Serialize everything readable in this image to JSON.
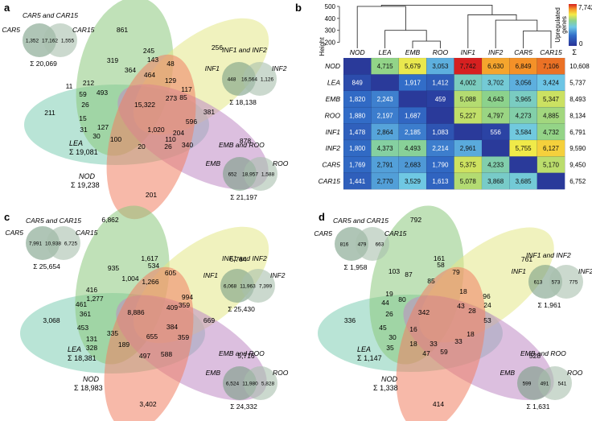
{
  "panel_letters": {
    "a": "a",
    "b": "b",
    "c": "c",
    "d": "d"
  },
  "colors": {
    "LEA": "#7fcdb4",
    "EMB": "#8cc97e",
    "INF": "#e3e888",
    "ROO": "#c08bc4",
    "NOD": "#f07f62",
    "pair_left": "#7a9e86",
    "pair_right": "#a9c0ad",
    "heat_low": "#2a3a9a",
    "heat_high": "#d62020"
  },
  "venns": {
    "a": {
      "regions": [
        "861",
        "256",
        "211",
        "878",
        "201",
        "319",
        "245",
        "48",
        "364",
        "143",
        "464",
        "129",
        "212",
        "493",
        "59",
        "26",
        "117",
        "85",
        "15,322",
        "273",
        "31",
        "127",
        "381",
        "15",
        "1,020",
        "596",
        "30",
        "110",
        "340",
        "100",
        "204",
        "20",
        "26",
        "11"
      ],
      "pairs": [
        {
          "title": "CAR5 and CAR15",
          "left_label": "CAR5",
          "right_label": "CAR15",
          "left": "1,352",
          "mid": "17,162",
          "right": "1,555",
          "sum": "Σ 20,069"
        },
        {
          "title": "INF1 and INF2",
          "left_label": "INF1",
          "right_label": "INF2",
          "left": "448",
          "mid": "16,564",
          "right": "1,126",
          "sum": "Σ 18,138"
        },
        {
          "title": "EMB and ROO",
          "left_label": "EMB",
          "right_label": "ROO",
          "left": "652",
          "mid": "18,957",
          "right": "1,588",
          "sum": "Σ 21,197"
        }
      ],
      "lea_label": "LEA",
      "lea_sum": "Σ 19,081",
      "nod_label": "NOD",
      "nod_sum": "Σ 19,238"
    },
    "c": {
      "regions": [
        "6,862",
        "6,784",
        "3,068",
        "5,716",
        "3,402",
        "935",
        "1,617",
        "534",
        "1,004",
        "605",
        "1,266",
        "416",
        "1,277",
        "994",
        "461",
        "361",
        "8,886",
        "409",
        "359",
        "453",
        "669",
        "131",
        "335",
        "384",
        "328",
        "189",
        "655",
        "359",
        "497",
        "588"
      ],
      "pairs": [
        {
          "title": "CAR5 and CAR15",
          "left_label": "CAR5",
          "right_label": "CAR15",
          "left": "7,991",
          "mid": "10,938",
          "right": "6,725",
          "sum": "Σ 25,654"
        },
        {
          "title": "INF1 and INF2",
          "left_label": "INF1",
          "right_label": "INF2",
          "left": "6,068",
          "mid": "11,963",
          "right": "7,399",
          "sum": "Σ 25,430"
        },
        {
          "title": "EMB and ROO",
          "left_label": "EMB",
          "right_label": "ROO",
          "left": "6,524",
          "mid": "11,980",
          "right": "5,828",
          "sum": "Σ 24,332"
        }
      ],
      "lea_label": "LEA",
      "lea_sum": "Σ 18,381",
      "nod_label": "NOD",
      "nod_sum": "Σ 18,983"
    },
    "d": {
      "regions": [
        "792",
        "761",
        "336",
        "528",
        "414",
        "103",
        "161",
        "58",
        "87",
        "79",
        "85",
        "19",
        "80",
        "18",
        "44",
        "26",
        "342",
        "43",
        "96",
        "45",
        "28",
        "24",
        "16",
        "30",
        "53",
        "35",
        "18",
        "33",
        "47",
        "59",
        "33",
        "18"
      ],
      "pairs": [
        {
          "title": "CAR5 and CAR15",
          "left_label": "CAR5",
          "right_label": "CAR15",
          "left": "816",
          "mid": "479",
          "right": "663",
          "sum": "Σ 1,958"
        },
        {
          "title": "INF1 and INF2",
          "left_label": "INF1",
          "right_label": "INF2",
          "left": "613",
          "mid": "573",
          "right": "775",
          "sum": "Σ 1,961"
        },
        {
          "title": "EMB and ROO",
          "left_label": "EMB",
          "right_label": "ROO",
          "left": "599",
          "mid": "491",
          "right": "541",
          "sum": "Σ 1,631"
        }
      ],
      "lea_label": "LEA",
      "lea_sum": "Σ 1,147",
      "nod_label": "NOD",
      "nod_sum": "Σ 1,338"
    }
  },
  "chart_data": {
    "type": "heatmap",
    "columns": [
      "NOD",
      "LEA",
      "EMB",
      "ROO",
      "INF1",
      "INF2",
      "CAR5",
      "CAR15"
    ],
    "rows": [
      "NOD",
      "LEA",
      "EMB",
      "ROO",
      "INF1",
      "INF2",
      "CAR5",
      "CAR15"
    ],
    "values": [
      [
        null,
        4715,
        5679,
        3053,
        7742,
        6630,
        6849,
        7106
      ],
      [
        849,
        null,
        1917,
        1412,
        4002,
        3702,
        3056,
        3424
      ],
      [
        1820,
        2243,
        null,
        459,
        5088,
        4643,
        3965,
        5347
      ],
      [
        1880,
        2197,
        1687,
        null,
        5227,
        4797,
        4273,
        4885
      ],
      [
        1478,
        2864,
        2185,
        1083,
        null,
        556,
        3584,
        4732
      ],
      [
        1800,
        4373,
        4493,
        2214,
        2961,
        null,
        5755,
        6127
      ],
      [
        1769,
        2791,
        2683,
        1790,
        5375,
        4233,
        null,
        5170
      ],
      [
        1441,
        2770,
        3529,
        1613,
        5078,
        3868,
        3685,
        null
      ]
    ],
    "row_sum_label": "Σ",
    "row_sums": [
      "10,608",
      "5,737",
      "8,493",
      "8,134",
      "6,791",
      "9,590",
      "9,450",
      "6,752"
    ],
    "dendrogram": {
      "ylabel": "Height",
      "yticks": [
        200,
        300,
        400,
        500
      ],
      "ylim": [
        150,
        520
      ],
      "merges": [
        {
          "left": 2,
          "right": 3,
          "height": 210
        },
        {
          "left": 1,
          "right": 8,
          "height": 300
        },
        {
          "left": 6,
          "right": 7,
          "height": 295
        },
        {
          "left": 5,
          "right": 10,
          "height": 385
        },
        {
          "left": 4,
          "right": 11,
          "height": 430
        },
        {
          "left": 0,
          "right": 9,
          "height": 500
        },
        {
          "left": 13,
          "right": 12,
          "height": 510
        }
      ]
    },
    "colorbar": {
      "max_label": "7,742",
      "min_label": "0",
      "title": "Upregulated genes",
      "max": 7742,
      "min": 0
    }
  }
}
